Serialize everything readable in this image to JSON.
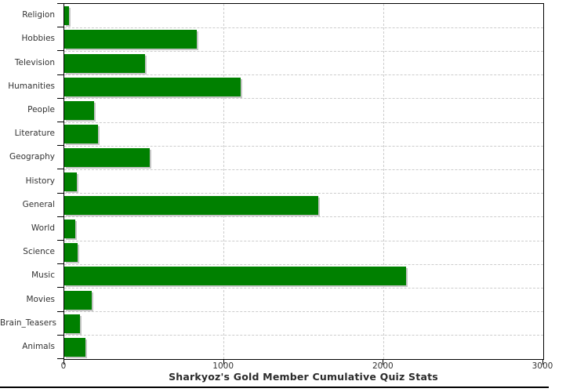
{
  "title": "Sharkyoz's Gold Member Cumulative Quiz Stats",
  "colors": {
    "bar": "#008000",
    "bar_shadow": "#c6c6c6",
    "grid": "#cccccc",
    "axis": "#000000",
    "label": "#333333"
  },
  "chart_data": {
    "type": "bar",
    "orientation": "horizontal",
    "title": "Sharkyoz's Gold Member Cumulative Quiz Stats",
    "categories": [
      "Religion",
      "Hobbies",
      "Television",
      "Humanities",
      "People",
      "Literature",
      "Geography",
      "History",
      "General",
      "World",
      "Science",
      "Music",
      "Movies",
      "Brain_Teasers",
      "Animals"
    ],
    "values": [
      30,
      830,
      505,
      1105,
      185,
      210,
      535,
      80,
      1590,
      70,
      85,
      2140,
      170,
      100,
      135
    ],
    "xlabel": "",
    "ylabel": "",
    "xlim": [
      0,
      3000
    ],
    "x_ticks": [
      0,
      1000,
      2000,
      3000
    ],
    "x_tick_labels": [
      "0",
      "1000",
      "2000",
      "3000"
    ],
    "grid": true,
    "legend": false,
    "bar_color": "#008000"
  }
}
